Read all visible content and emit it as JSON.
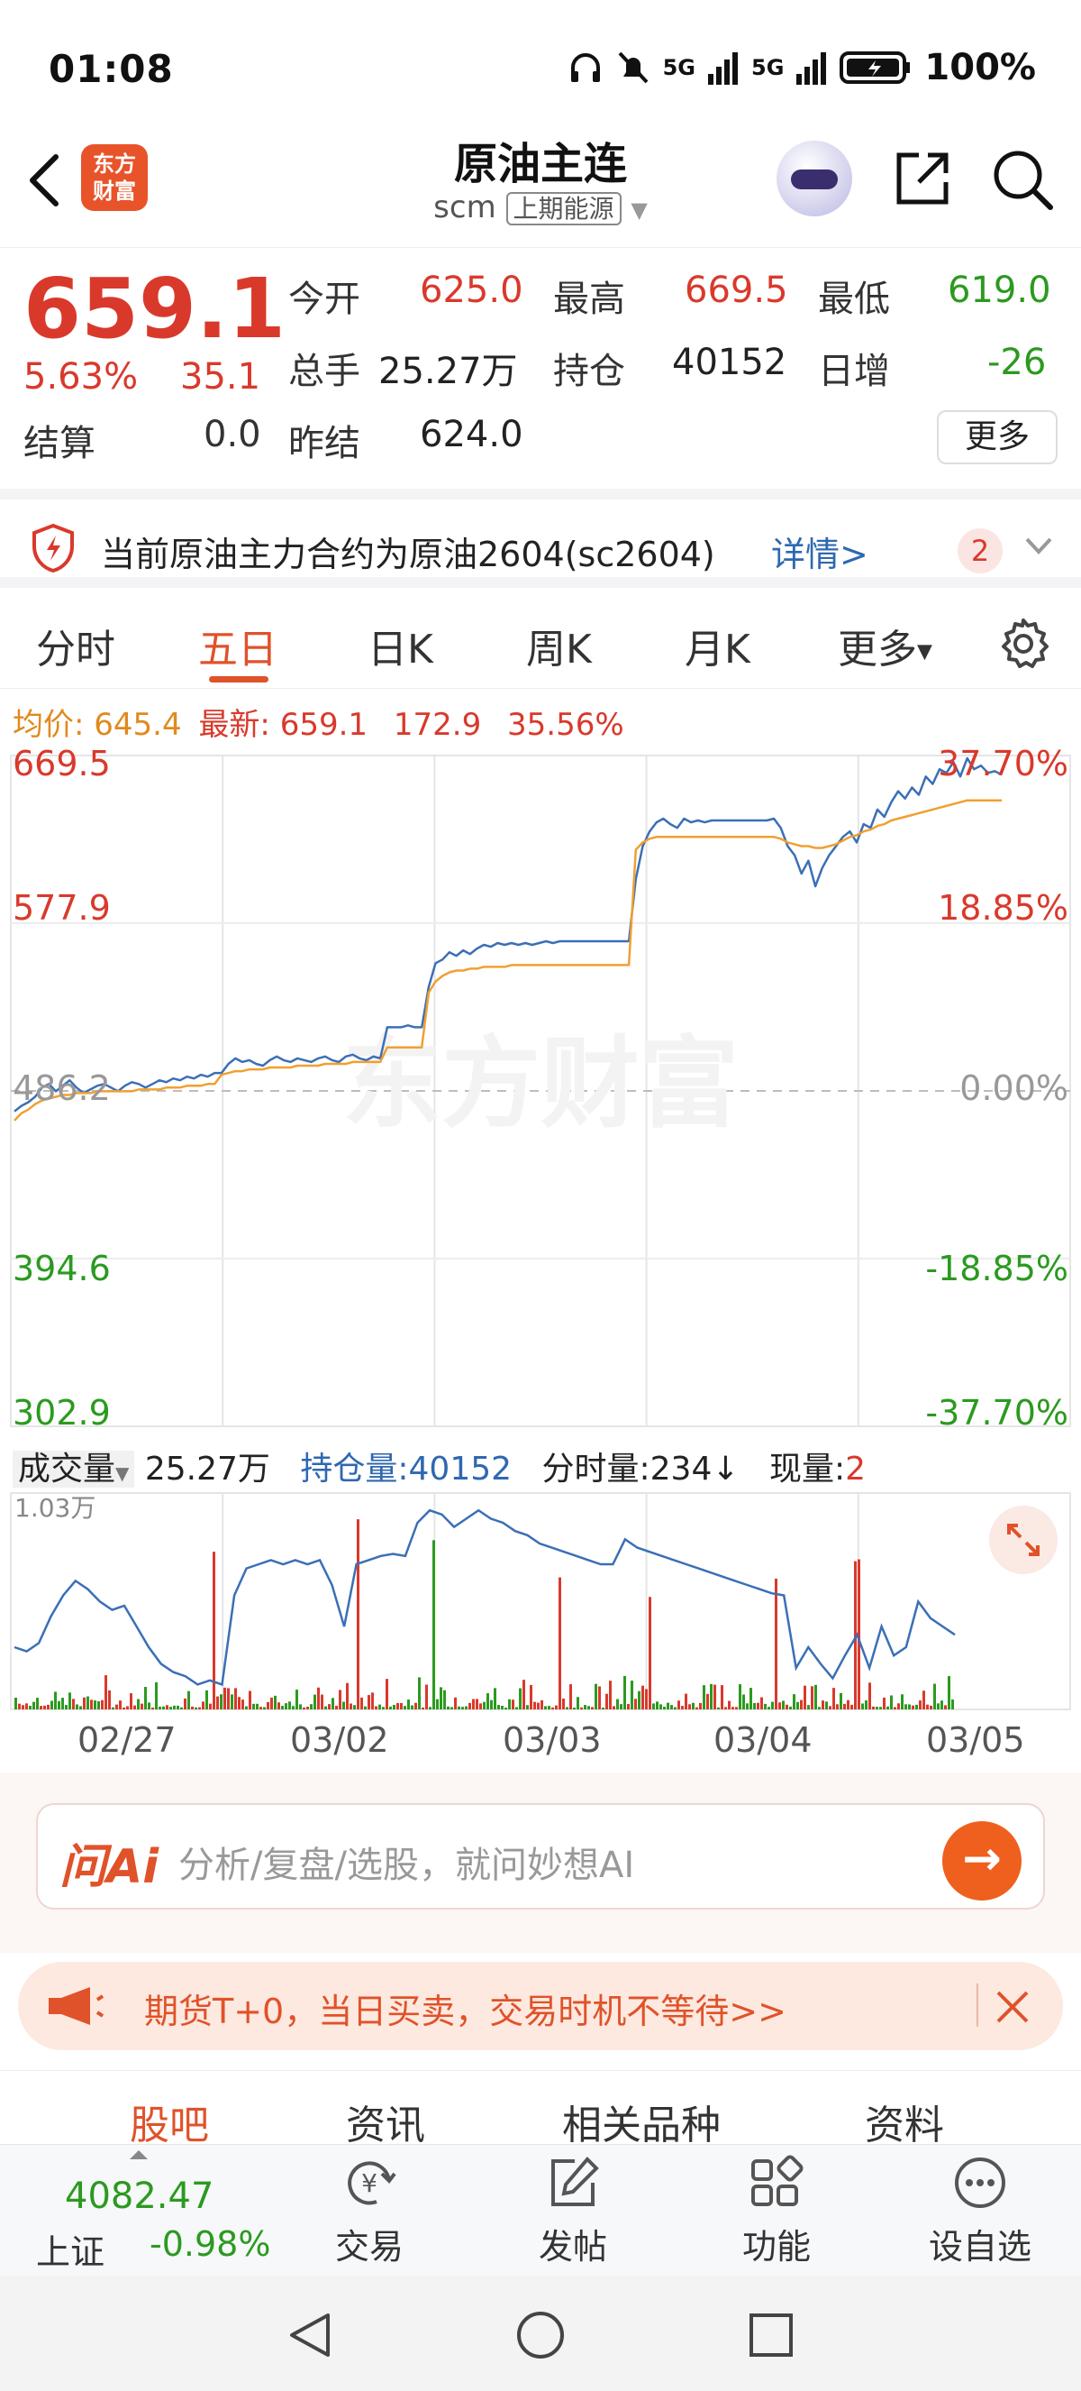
{
  "status_bar": {
    "time": "01:08",
    "battery": "100%",
    "signal1": "5G",
    "signal2": "5G"
  },
  "header": {
    "logo_line1": "东方",
    "logo_line2": "财富",
    "title": "原油主连",
    "code": "scm",
    "exchange": "上期能源"
  },
  "quote": {
    "price": "659.1",
    "change_pct": "5.63%",
    "change": "35.1",
    "settle_label": "结算",
    "settle_value": "0.0",
    "open_label": "今开",
    "open_value": "625.0",
    "high_label": "最高",
    "high_value": "669.5",
    "low_label": "最低",
    "low_value": "619.0",
    "volume_label": "总手",
    "volume_value": "25.27万",
    "oi_label": "持仓",
    "oi_value": "40152",
    "daily_inc_label": "日增",
    "daily_inc_value": "-26",
    "prev_settle_label": "昨结",
    "prev_settle_value": "624.0",
    "more_label": "更多"
  },
  "notice": {
    "text": "当前原油主力合约为原油2604(sc2604)",
    "link": "详情>",
    "badge": "2"
  },
  "tabs": [
    {
      "label": "分时"
    },
    {
      "label": "五日"
    },
    {
      "label": "日K"
    },
    {
      "label": "周K"
    },
    {
      "label": "月K"
    },
    {
      "label": "更多"
    }
  ],
  "avg_row": {
    "avg_label": "均价:",
    "avg_value": "645.4",
    "latest_label": "最新:",
    "latest_value": "659.1",
    "change": "172.9",
    "change_pct": "35.56%"
  },
  "chart_data": {
    "type": "line",
    "left_ticks": [
      "669.5",
      "577.9",
      "486.2",
      "394.6",
      "302.9"
    ],
    "right_ticks": [
      "37.70%",
      "18.85%",
      "0.00%",
      "-18.85%",
      "-37.70%"
    ],
    "ylim": [
      302.9,
      669.5
    ],
    "base": 486.2,
    "watermark": "东方财富",
    "colors": {
      "price": "#3b6fb6",
      "avg": "#f0a030"
    },
    "series": [
      {
        "values": [
          475,
          478,
          480,
          483,
          488,
          490,
          486,
          489,
          492,
          488,
          485,
          487,
          489,
          490,
          488,
          486,
          489,
          491,
          490,
          488,
          490,
          492,
          491,
          493,
          492,
          494,
          493,
          495,
          494,
          496,
          496,
          501,
          504,
          502,
          503,
          501,
          500,
          503,
          505,
          503,
          502,
          504,
          503,
          502,
          504,
          505,
          503,
          502,
          505,
          506,
          504,
          503,
          505,
          504,
          521,
          521,
          521,
          522,
          521,
          521,
          543,
          556,
          558,
          562,
          560,
          563,
          561,
          564,
          566,
          565,
          567,
          566,
          567,
          566,
          567,
          566,
          567,
          568,
          567,
          568,
          568,
          568,
          568,
          568,
          568,
          568,
          568,
          568,
          568,
          568,
          602,
          620,
          628,
          633,
          635,
          632,
          630,
          635,
          633,
          634,
          633,
          634,
          634,
          634,
          634,
          634,
          634,
          634,
          634,
          634,
          635,
          630,
          620,
          615,
          605,
          612,
          598,
          608,
          615,
          620,
          625,
          628,
          622,
          632,
          630,
          640,
          636,
          644,
          650,
          646,
          652,
          648,
          658,
          654,
          662,
          660,
          666,
          658,
          668,
          662,
          664,
          660,
          661,
          659
        ]
      },
      {
        "values": [
          470,
          474,
          476,
          479,
          481,
          482,
          483,
          484,
          484,
          485,
          485,
          485,
          486,
          486,
          486,
          486,
          486,
          486,
          487,
          487,
          487,
          487,
          488,
          488,
          488,
          489,
          489,
          489,
          490,
          490,
          495,
          496,
          497,
          497,
          498,
          498,
          498,
          499,
          499,
          499,
          499,
          500,
          500,
          500,
          500,
          501,
          501,
          501,
          501,
          502,
          502,
          502,
          502,
          502,
          510,
          510,
          510,
          510,
          510,
          510,
          540,
          546,
          549,
          551,
          552,
          552,
          553,
          553,
          554,
          554,
          554,
          554,
          555,
          555,
          555,
          555,
          555,
          555,
          555,
          555,
          555,
          555,
          555,
          555,
          555,
          555,
          555,
          555,
          555,
          555,
          618,
          622,
          624,
          625,
          625,
          625,
          625,
          625,
          625,
          625,
          625,
          625,
          625,
          625,
          625,
          625,
          625,
          625,
          625,
          625,
          625,
          624,
          622,
          621,
          620,
          620,
          619,
          619,
          620,
          621,
          623,
          625,
          626,
          628,
          629,
          631,
          632,
          634,
          635,
          636,
          637,
          638,
          639,
          640,
          641,
          642,
          643,
          644,
          645,
          645,
          645,
          645,
          645,
          645
        ]
      }
    ]
  },
  "volume_row": {
    "label": "成交量",
    "volume_value": "25.27万",
    "oi_label": "持仓量:",
    "oi_value": "40152",
    "tick_label": "分时量:",
    "tick_value": "234",
    "now_label": "现量:",
    "now_value": "2"
  },
  "volume_chart": {
    "max_label": "1.03万",
    "oi_line": [
      30,
      28,
      32,
      45,
      55,
      62,
      58,
      52,
      48,
      50,
      40,
      30,
      22,
      18,
      16,
      12,
      14,
      12,
      55,
      68,
      70,
      72,
      70,
      72,
      70,
      72,
      60,
      40,
      70,
      72,
      74,
      75,
      74,
      90,
      96,
      94,
      88,
      92,
      96,
      92,
      90,
      86,
      84,
      80,
      78,
      76,
      74,
      72,
      70,
      70,
      82,
      78,
      76,
      74,
      72,
      70,
      68,
      66,
      64,
      62,
      60,
      58,
      56,
      55,
      20,
      30,
      22,
      15,
      26,
      36,
      20,
      40,
      26,
      30,
      52,
      44,
      40,
      36
    ]
  },
  "dates": [
    "02/27",
    "03/02",
    "03/03",
    "03/04",
    "03/05"
  ],
  "ai": {
    "logo": "问Ai",
    "placeholder": "分析/复盘/选股，就问妙想AI"
  },
  "promo": {
    "text": "期货T+0，当日买卖，交易时机不等待>>"
  },
  "subtabs": [
    {
      "label": "股吧"
    },
    {
      "label": "资讯"
    },
    {
      "label": "相关品种"
    },
    {
      "label": "资料"
    }
  ],
  "bottom": {
    "index_value": "4082.47",
    "index_name": "上证",
    "index_change": "-0.98%",
    "items": [
      {
        "label": "交易"
      },
      {
        "label": "发帖"
      },
      {
        "label": "功能"
      },
      {
        "label": "设自选"
      }
    ]
  }
}
